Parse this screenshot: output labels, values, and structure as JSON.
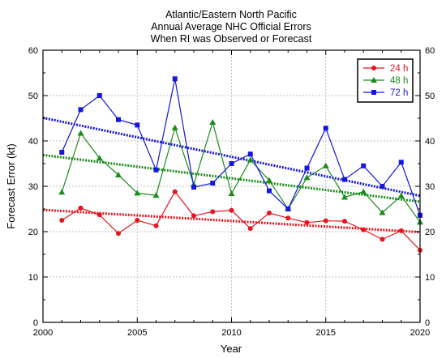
{
  "chart_data": {
    "type": "line",
    "title": [
      "Atlantic/Eastern North Pacific",
      "Annual Average NHC Official Errors",
      "When RI was Observed or Forecast"
    ],
    "xlabel": "Year",
    "ylabel": "Forecast Error (kt)",
    "xlim": [
      2000,
      2020
    ],
    "ylim": [
      0,
      60
    ],
    "x_ticks": [
      2000,
      2005,
      2010,
      2015,
      2020
    ],
    "y_ticks": [
      0,
      10,
      20,
      30,
      40,
      50,
      60
    ],
    "grid": true,
    "legend_position": "top-right",
    "x": [
      2001,
      2002,
      2003,
      2004,
      2005,
      2006,
      2007,
      2008,
      2009,
      2010,
      2011,
      2012,
      2013,
      2014,
      2015,
      2016,
      2017,
      2018,
      2019,
      2020
    ],
    "series": [
      {
        "name": "24 h",
        "color": "#e8141c",
        "marker": "circle",
        "values": [
          22.5,
          25.2,
          23.7,
          19.6,
          22.5,
          21.3,
          28.8,
          23.5,
          24.4,
          24.7,
          20.7,
          24.1,
          23.0,
          22.0,
          22.4,
          22.3,
          20.4,
          18.3,
          20.2,
          15.9
        ],
        "trend": [
          24.8,
          19.9
        ]
      },
      {
        "name": "48 h",
        "color": "#1a8c1a",
        "marker": "triangle",
        "values": [
          28.7,
          41.7,
          36.2,
          32.5,
          28.5,
          28.0,
          42.9,
          30.4,
          44.1,
          28.4,
          35.8,
          31.3,
          25.0,
          31.9,
          34.5,
          27.6,
          28.8,
          24.2,
          27.9,
          22.1
        ],
        "trend": [
          36.9,
          26.6
        ]
      },
      {
        "name": "72 h",
        "color": "#1515e0",
        "marker": "square",
        "values": [
          37.5,
          46.9,
          50.0,
          44.7,
          43.5,
          33.6,
          53.7,
          29.8,
          30.7,
          35.0,
          37.1,
          29.0,
          25.0,
          34.0,
          42.8,
          31.5,
          34.5,
          30.0,
          35.3,
          23.6
        ],
        "trend": [
          45.1,
          27.9
        ]
      }
    ]
  }
}
